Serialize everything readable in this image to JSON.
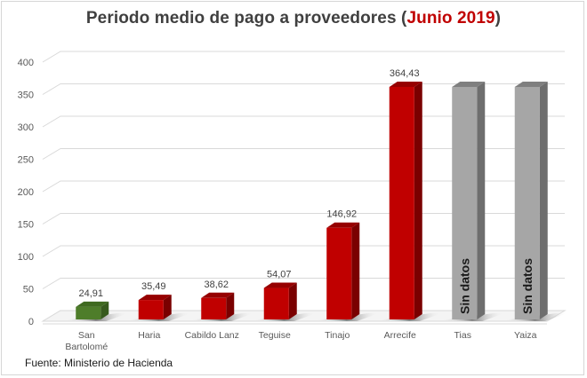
{
  "chart_data": {
    "type": "bar",
    "title_main": "Periodo medio de pago a proveedores (",
    "title_highlight": "Junio 2019",
    "title_end": ")",
    "source": "Fuente: Ministerio de Hacienda",
    "xlabel": "",
    "ylabel": "",
    "ylim": [
      0,
      400
    ],
    "yticks": [
      "0",
      "50",
      "100",
      "150",
      "200",
      "250",
      "300",
      "350",
      "400"
    ],
    "grid": true,
    "categories": [
      {
        "lines": [
          "San",
          "Bartolomé"
        ]
      },
      {
        "lines": [
          "Haria"
        ]
      },
      {
        "lines": [
          "Cabildo Lanz"
        ]
      },
      {
        "lines": [
          "Teguise"
        ]
      },
      {
        "lines": [
          "Tinajo"
        ]
      },
      {
        "lines": [
          "Arrecife"
        ]
      },
      {
        "lines": [
          "Tias"
        ]
      },
      {
        "lines": [
          "Yaiza"
        ]
      }
    ],
    "values": [
      24.91,
      35.49,
      38.62,
      54.07,
      146.92,
      364.43,
      null,
      null
    ],
    "data_labels": [
      "24,91",
      "35,49",
      "38,62",
      "54,07",
      "146,92",
      "364,43",
      "Sin datos",
      "Sin datos"
    ],
    "nodata_placeholder_value": 364.43,
    "bar_colors": [
      "#4e7d2a",
      "#c00000",
      "#c00000",
      "#c00000",
      "#c00000",
      "#c00000",
      "#a6a6a6",
      "#a6a6a6"
    ],
    "bar_side_colors": [
      "#365a1c",
      "#7a0000",
      "#7a0000",
      "#7a0000",
      "#7a0000",
      "#7a0000",
      "#6e6e6e",
      "#6e6e6e"
    ],
    "bar_top_colors": [
      "#3f6a20",
      "#960000",
      "#960000",
      "#960000",
      "#960000",
      "#960000",
      "#7f7f7f",
      "#7f7f7f"
    ]
  }
}
